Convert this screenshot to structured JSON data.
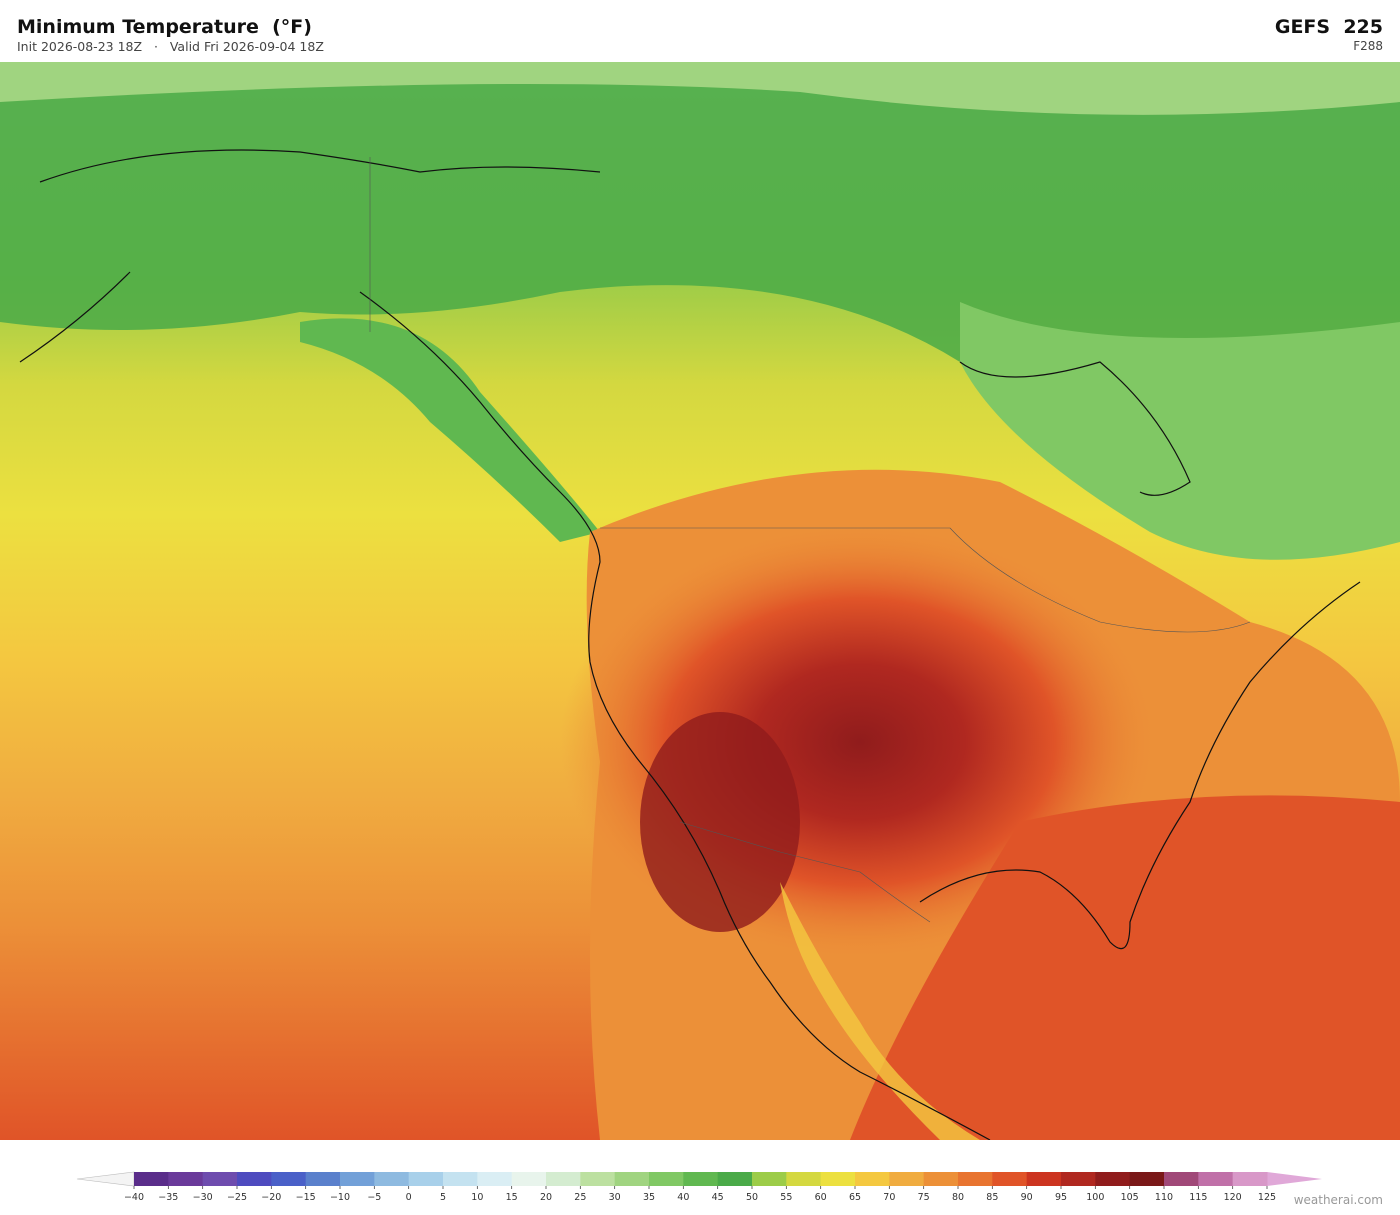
{
  "header": {
    "title": "Minimum Temperature  (°F)",
    "subtitle": "Init 2026-08-23 18Z   ·   Valid Fri 2026-09-04 18Z",
    "model": "GEFS  225",
    "forecast_hour": "F288"
  },
  "colorbar": {
    "ticks": [
      {
        "value": -40,
        "label": "−40"
      },
      {
        "value": -35,
        "label": "−35"
      },
      {
        "value": -30,
        "label": "−30"
      },
      {
        "value": -25,
        "label": "−25"
      },
      {
        "value": -20,
        "label": "−20"
      },
      {
        "value": -15,
        "label": "−15"
      },
      {
        "value": -10,
        "label": "−10"
      },
      {
        "value": -5,
        "label": "−5"
      },
      0,
      5,
      10,
      15,
      20,
      25,
      30,
      35,
      40,
      45,
      50,
      55,
      60,
      65,
      70,
      75,
      80,
      85,
      90,
      95,
      100,
      105,
      110,
      115,
      120,
      125
    ],
    "colors": [
      "#5a2d8a",
      "#6a3a9a",
      "#6e4cae",
      "#4e4bbf",
      "#4a60c8",
      "#5a80cc",
      "#72a0d8",
      "#8ebae0",
      "#a8d0ea",
      "#c4e2f0",
      "#daeef4",
      "#e8f4ec",
      "#d4ecd0",
      "#bce0a0",
      "#a0d480",
      "#80c864",
      "#60b850",
      "#4aaa48",
      "#9ccc48",
      "#d4d840",
      "#ece040",
      "#f4c840",
      "#f0ac40",
      "#ec9038",
      "#e87430",
      "#e05428",
      "#cc3420",
      "#b02820",
      "#901c1c",
      "#7a1818",
      "#a04878",
      "#c070a8",
      "#d898c8"
    ],
    "under_color": "#f4f4f4",
    "over_color": "#e0a8d8"
  },
  "footer": {
    "credit": "weatherai.com"
  }
}
